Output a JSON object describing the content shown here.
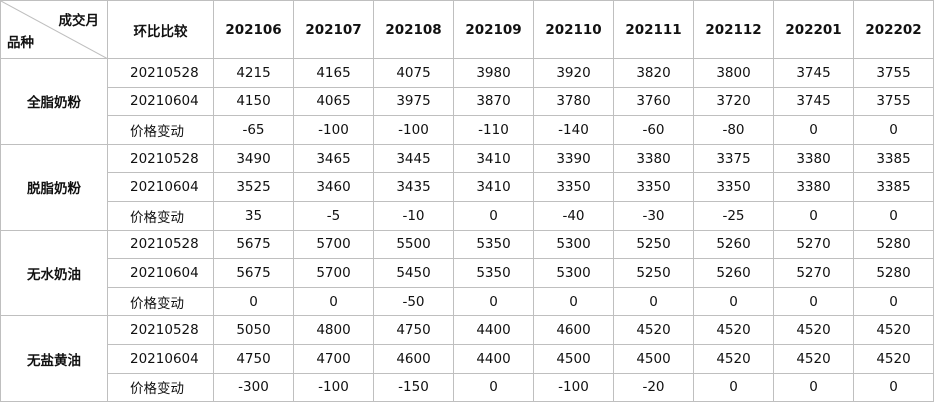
{
  "header": {
    "corner_top": "成交月",
    "corner_bottom": "品种",
    "compare": "环比比较",
    "months": [
      "202106",
      "202107",
      "202108",
      "202109",
      "202110",
      "202111",
      "202112",
      "202201",
      "202202"
    ]
  },
  "groups": [
    {
      "product": "全脂奶粉",
      "rows": [
        {
          "label": "20210528",
          "values": [
            4215,
            4165,
            4075,
            3980,
            3920,
            3820,
            3800,
            3745,
            3755
          ]
        },
        {
          "label": "20210604",
          "values": [
            4150,
            4065,
            3975,
            3870,
            3780,
            3760,
            3720,
            3745,
            3755
          ]
        },
        {
          "label": "价格变动",
          "values": [
            -65,
            -100,
            -100,
            -110,
            -140,
            -60,
            -80,
            0,
            0
          ]
        }
      ]
    },
    {
      "product": "脱脂奶粉",
      "rows": [
        {
          "label": "20210528",
          "values": [
            3490,
            3465,
            3445,
            3410,
            3390,
            3380,
            3375,
            3380,
            3385
          ]
        },
        {
          "label": "20210604",
          "values": [
            3525,
            3460,
            3435,
            3410,
            3350,
            3350,
            3350,
            3380,
            3385
          ]
        },
        {
          "label": "价格变动",
          "values": [
            35,
            -5,
            -10,
            0,
            -40,
            -30,
            -25,
            0,
            0
          ]
        }
      ]
    },
    {
      "product": "无水奶油",
      "rows": [
        {
          "label": "20210528",
          "values": [
            5675,
            5700,
            5500,
            5350,
            5300,
            5250,
            5260,
            5270,
            5280
          ]
        },
        {
          "label": "20210604",
          "values": [
            5675,
            5700,
            5450,
            5350,
            5300,
            5250,
            5260,
            5270,
            5280
          ]
        },
        {
          "label": "价格变动",
          "values": [
            0,
            0,
            -50,
            0,
            0,
            0,
            0,
            0,
            0
          ]
        }
      ]
    },
    {
      "product": "无盐黄油",
      "rows": [
        {
          "label": "20210528",
          "values": [
            5050,
            4800,
            4750,
            4400,
            4600,
            4520,
            4520,
            4520,
            4520
          ]
        },
        {
          "label": "20210604",
          "values": [
            4750,
            4700,
            4600,
            4400,
            4500,
            4500,
            4520,
            4520,
            4520
          ]
        },
        {
          "label": "价格变动",
          "values": [
            -300,
            -100,
            -150,
            0,
            -100,
            -20,
            0,
            0,
            0
          ]
        }
      ]
    }
  ]
}
